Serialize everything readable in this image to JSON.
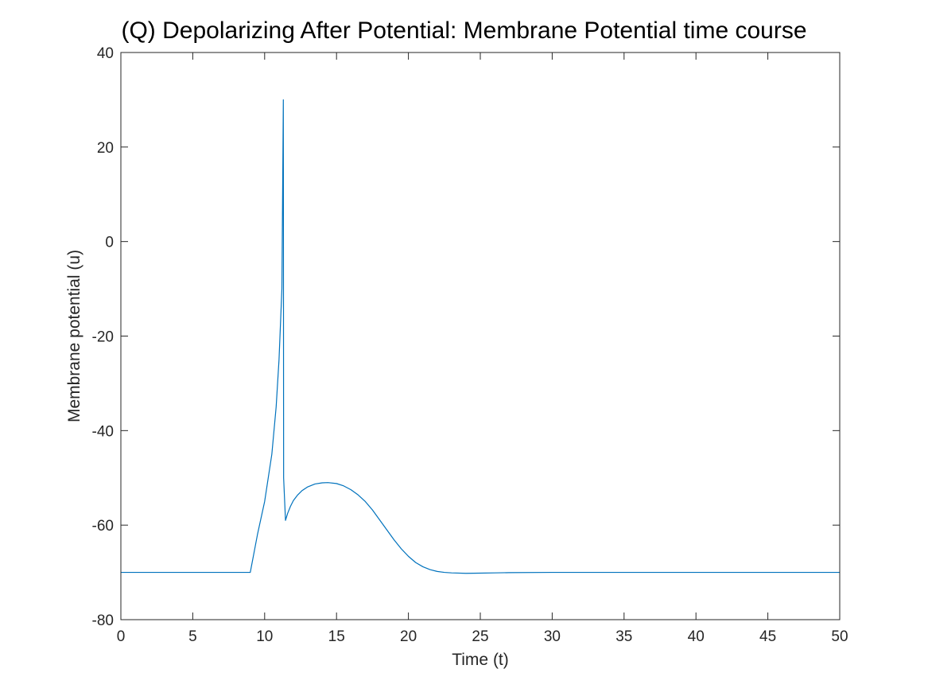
{
  "chart_data": {
    "type": "line",
    "title": "(Q) Depolarizing After Potential: Membrane Potential time course",
    "xlabel": "Time (t)",
    "ylabel": "Membrane potential (u)",
    "xlim": [
      0,
      50
    ],
    "ylim": [
      -80,
      40
    ],
    "xticks": [
      0,
      5,
      10,
      15,
      20,
      25,
      30,
      35,
      40,
      45,
      50
    ],
    "yticks": [
      -80,
      -60,
      -40,
      -20,
      0,
      20,
      40
    ],
    "grid": false,
    "box": true,
    "series": [
      {
        "color": "#0072BD",
        "x": [
          0,
          9,
          9.5,
          10,
          10.5,
          10.8,
          11.0,
          11.2,
          11.3,
          11.32,
          11.45,
          11.6,
          11.8,
          12.0,
          12.3,
          12.6,
          13.0,
          13.5,
          14.0,
          14.4,
          15.0,
          15.5,
          16.0,
          16.5,
          17.0,
          17.5,
          18.0,
          18.5,
          19.0,
          19.5,
          20.0,
          20.5,
          21.0,
          21.5,
          22.0,
          22.5,
          23.0,
          24.0,
          25.0,
          26.0,
          27.0,
          30.0,
          35.0,
          40.0,
          45.0,
          50.0
        ],
        "y": [
          -70,
          -70,
          -62,
          -55,
          -45,
          -35,
          -25,
          -10,
          30,
          -50,
          -59,
          -57.5,
          -56,
          -54.8,
          -53.6,
          -52.7,
          -51.9,
          -51.3,
          -51.05,
          -51.0,
          -51.2,
          -51.7,
          -52.5,
          -53.6,
          -55.0,
          -56.8,
          -58.9,
          -61.0,
          -63.1,
          -65.0,
          -66.6,
          -67.9,
          -68.8,
          -69.4,
          -69.8,
          -70.0,
          -70.1,
          -70.2,
          -70.15,
          -70.1,
          -70.05,
          -70.0,
          -70.0,
          -70.0,
          -70.0,
          -70.0
        ]
      }
    ]
  }
}
